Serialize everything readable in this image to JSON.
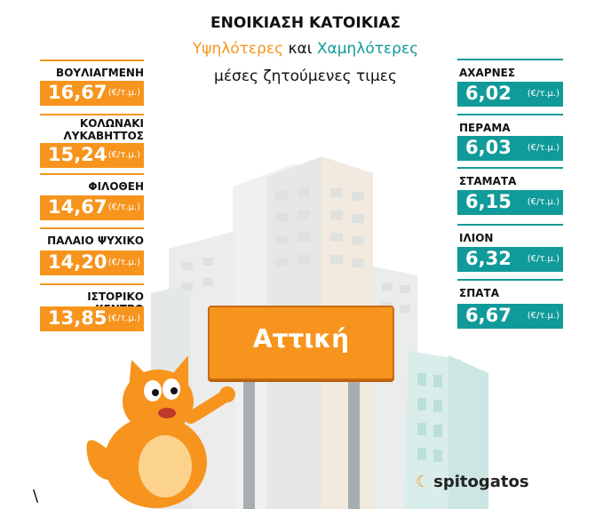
{
  "title": "ΕΝΟΙΚΙΑΣΗ ΚΑΤΟΙΚΙΑΣ",
  "subtitle": {
    "highest": "Υψηλότερες",
    "and": "και",
    "lowest": "Χαμηλότερες"
  },
  "subtitle2": "μέσες ζητούμενες τιμες",
  "unit": "(€/τ.μ.)",
  "highest": [
    {
      "name": "ΒΟΥΛΙΑΓΜΕΝΗ",
      "value": "16,67"
    },
    {
      "name": "ΚΟΛΩΝΑΚΙ\nΛΥΚΑΒΗΤΤΟΣ",
      "value": "15,24"
    },
    {
      "name": "ΦΙΛΟΘΕΗ",
      "value": "14,67"
    },
    {
      "name": "ΠΑΛΑΙΟ ΨΥΧΙΚΟ",
      "value": "14,20"
    },
    {
      "name": "ΙΣΤΟΡΙΚΟ ΚΕΝΤΡΟ",
      "value": "13,85"
    }
  ],
  "lowest": [
    {
      "name": "ΑΧΑΡΝΕΣ",
      "value": "6,02"
    },
    {
      "name": "ΠΕΡΑΜΑ",
      "value": "6,03"
    },
    {
      "name": "ΣΤΑΜΑΤΑ",
      "value": "6,15"
    },
    {
      "name": "ΙΛΙΟΝ",
      "value": "6,32"
    },
    {
      "name": "ΣΠΑΤΑ",
      "value": "6,67"
    }
  ],
  "sign_label": "Αττική",
  "logo_text": "spitogatos",
  "stray_mark": "\\",
  "colors": {
    "orange": "#f7941d",
    "teal": "#119a9a"
  }
}
